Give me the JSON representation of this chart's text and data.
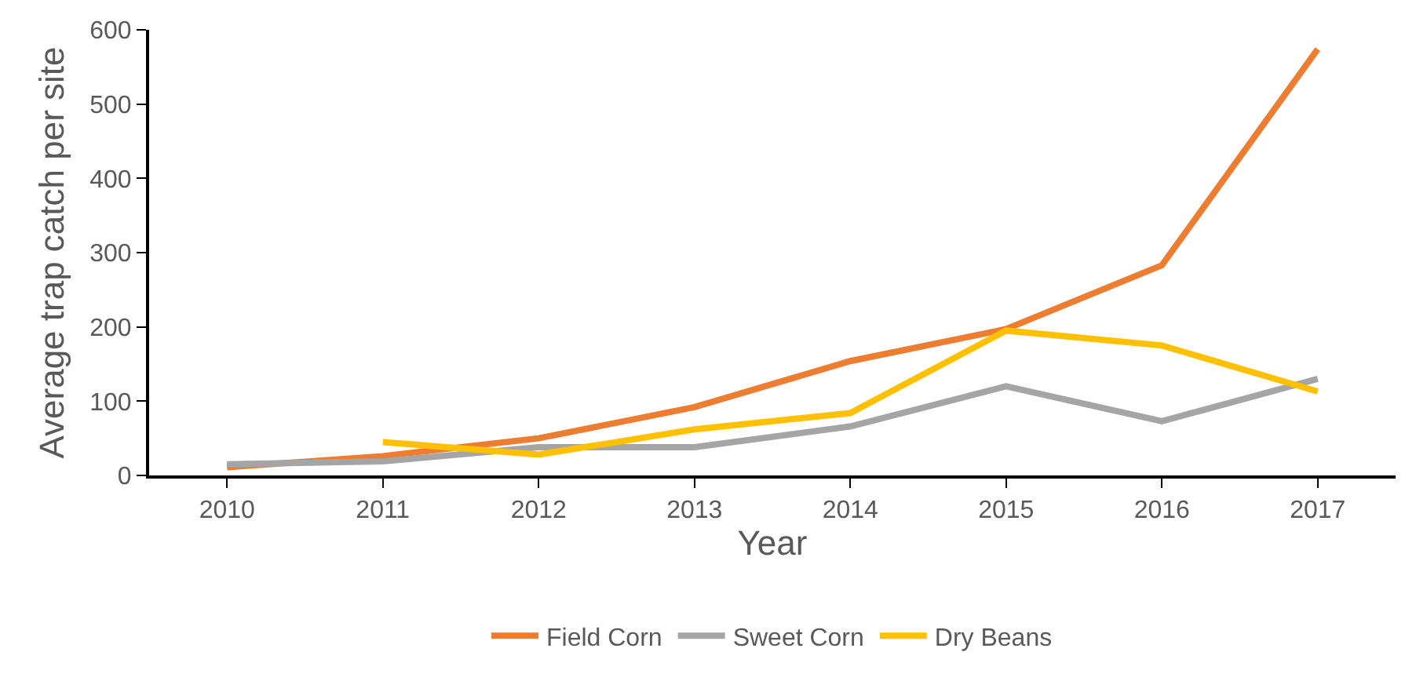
{
  "chart_data": {
    "type": "line",
    "xlabel": "Year",
    "ylabel": "Average trap catch per site",
    "categories": [
      "2010",
      "2011",
      "2012",
      "2013",
      "2014",
      "2015",
      "2016",
      "2017"
    ],
    "series": [
      {
        "name": "Field Corn",
        "color": "#ed7d31",
        "values": [
          11,
          26,
          50,
          92,
          154,
          197,
          283,
          574
        ]
      },
      {
        "name": "Sweet Corn",
        "color": "#a5a5a5",
        "values": [
          15,
          19,
          38,
          38,
          66,
          120,
          73,
          130
        ]
      },
      {
        "name": "Dry Beans",
        "color": "#ffc000",
        "values": [
          null,
          45,
          28,
          62,
          84,
          195,
          175,
          113
        ]
      }
    ],
    "ylim": [
      0,
      600
    ],
    "yticks": [
      0,
      100,
      200,
      300,
      400,
      500,
      600
    ],
    "legend": "bottom",
    "marker": "none",
    "line_style": "solid"
  }
}
